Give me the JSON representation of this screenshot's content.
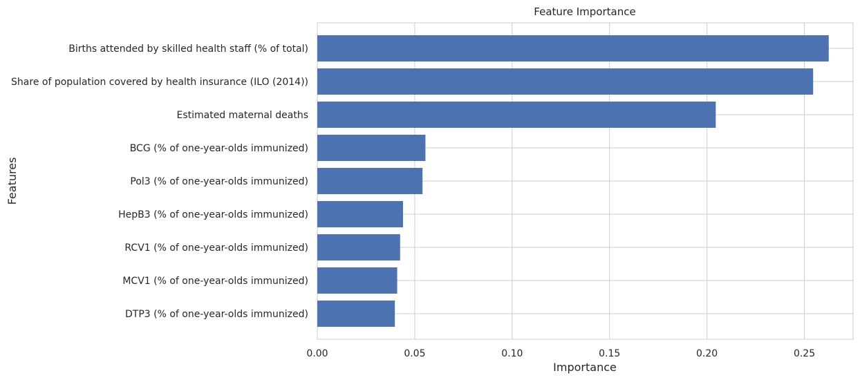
{
  "chart_data": {
    "type": "bar",
    "orientation": "horizontal",
    "title": "Feature Importance",
    "xlabel": "Importance",
    "ylabel": "Features",
    "xlim": [
      0,
      0.275
    ],
    "x_ticks": [
      0.0,
      0.05,
      0.1,
      0.15,
      0.2,
      0.25
    ],
    "x_tick_labels": [
      "0.00",
      "0.05",
      "0.10",
      "0.15",
      "0.20",
      "0.25"
    ],
    "grid": true,
    "bar_color": "#4c72b0",
    "categories": [
      "Births attended by skilled health staff (% of total)",
      "Share of population covered by health insurance (ILO (2014))",
      "Estimated maternal deaths",
      "BCG (% of one-year-olds immunized)",
      "Pol3 (% of one-year-olds immunized)",
      "HepB3 (% of one-year-olds immunized)",
      "RCV1 (% of one-year-olds immunized)",
      "MCV1 (% of one-year-olds immunized)",
      "DTP3 (% of one-year-olds immunized)"
    ],
    "values": [
      0.2625,
      0.2545,
      0.2045,
      0.0555,
      0.054,
      0.044,
      0.0425,
      0.041,
      0.0398
    ]
  }
}
